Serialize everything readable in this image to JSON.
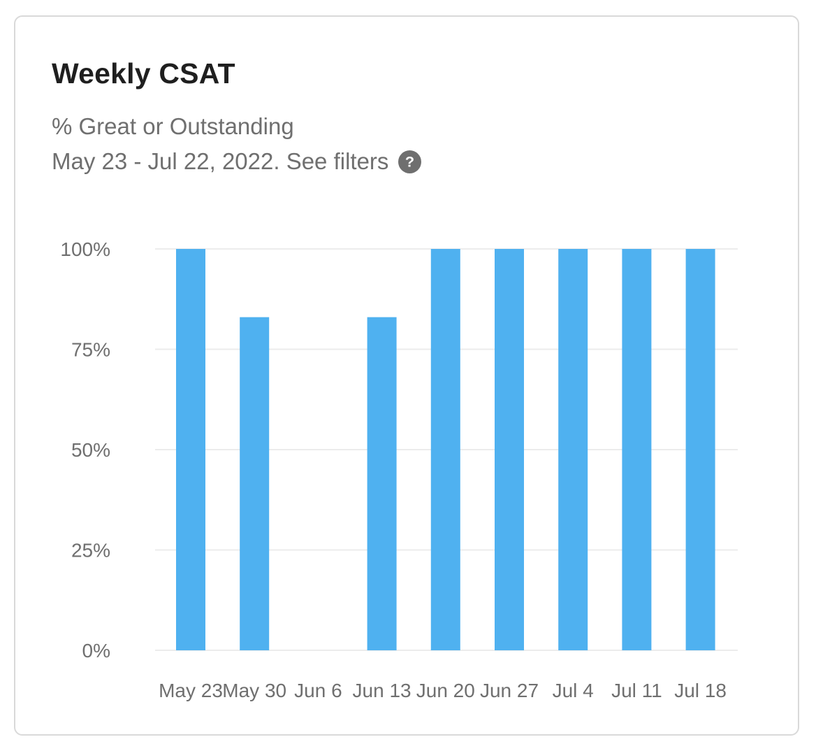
{
  "card": {
    "title": "Weekly CSAT",
    "subtitle": "% Great or Outstanding",
    "date_range": "May 23 - Jul 22, 2022. See filters",
    "help_icon": "question-circle-icon"
  },
  "colors": {
    "bar": "#4fb1f0",
    "grid": "#ececec",
    "text": "#6f6f6f",
    "title": "#1f1f1f"
  },
  "chart_data": {
    "type": "bar",
    "title": "Weekly CSAT",
    "subtitle": "% Great or Outstanding",
    "xlabel": "",
    "ylabel": "",
    "categories": [
      "May 23",
      "May 30",
      "Jun 6",
      "Jun 13",
      "Jun 20",
      "Jun 27",
      "Jul 4",
      "Jul 11",
      "Jul 18"
    ],
    "values": [
      100,
      83,
      0,
      83,
      100,
      100,
      100,
      100,
      100
    ],
    "ylim": [
      0,
      100
    ],
    "yticks": [
      0,
      25,
      50,
      75,
      100
    ],
    "ytick_labels": [
      "0%",
      "25%",
      "50%",
      "75%",
      "100%"
    ],
    "grid": true,
    "legend": "none"
  }
}
